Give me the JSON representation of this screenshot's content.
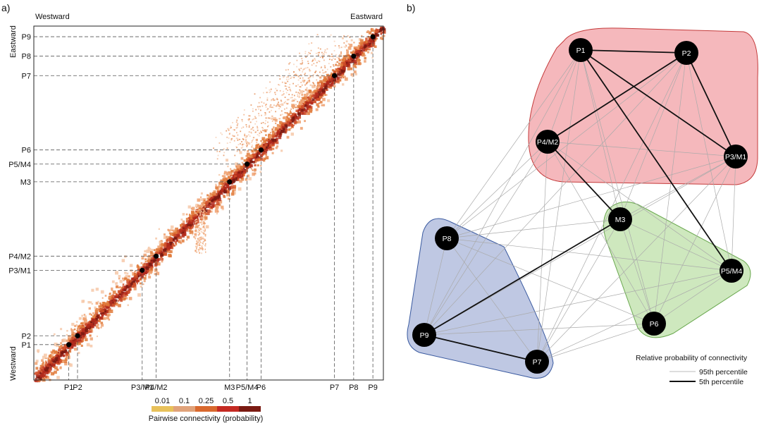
{
  "panel_a": {
    "label": "a)",
    "top_left": "Westward",
    "top_right": "Eastward",
    "left_top": "Eastward",
    "left_bottom": "Westward"
  },
  "panel_b": {
    "label": "b)",
    "legend_title": "Relative probability of connectivity",
    "legend_items": [
      "95th percentile",
      "5th percentile"
    ]
  },
  "colorbar": {
    "title": "Pairwise connectivity (probability)",
    "ticks": [
      "0.01",
      "0.1",
      "0.25",
      "0.5",
      "1"
    ],
    "colors": [
      "#e8c15a",
      "#e0a27a",
      "#d9692e",
      "#c42a22",
      "#7a1a12"
    ]
  },
  "chart_data": [
    {
      "type": "heatmap",
      "title": "",
      "xlabel": "",
      "ylabel": "",
      "sites": [
        "P1",
        "P2",
        "P3/M1",
        "P4/M2",
        "M3",
        "P5/M4",
        "P6",
        "P7",
        "P8",
        "P9"
      ],
      "site_positions": [
        0.1,
        0.125,
        0.31,
        0.35,
        0.56,
        0.61,
        0.65,
        0.86,
        0.915,
        0.97
      ],
      "value_legend": [
        0.01,
        0.1,
        0.25,
        0.5,
        1
      ]
    },
    {
      "type": "network",
      "nodes": [
        "P1",
        "P2",
        "P4/M2",
        "P3/M1",
        "M3",
        "P8",
        "P5/M4",
        "P9",
        "P6",
        "P7"
      ],
      "clusters": [
        {
          "members": [
            "P1",
            "P2",
            "P4/M2",
            "P3/M1"
          ],
          "color": "#f2a0a6"
        },
        {
          "members": [
            "M3",
            "P5/M4",
            "P6"
          ],
          "color": "#bde0a8"
        },
        {
          "members": [
            "P8",
            "P9",
            "P7"
          ],
          "color": "#a9b6d9"
        }
      ],
      "strong_links": [
        [
          "P1",
          "P2"
        ],
        [
          "P1",
          "P3/M1"
        ],
        [
          "P1",
          "P5/M4"
        ],
        [
          "P2",
          "P4/M2"
        ],
        [
          "P2",
          "P3/M1"
        ],
        [
          "P4/M2",
          "M3"
        ],
        [
          "M3",
          "P9"
        ],
        [
          "P9",
          "P7"
        ]
      ]
    }
  ]
}
